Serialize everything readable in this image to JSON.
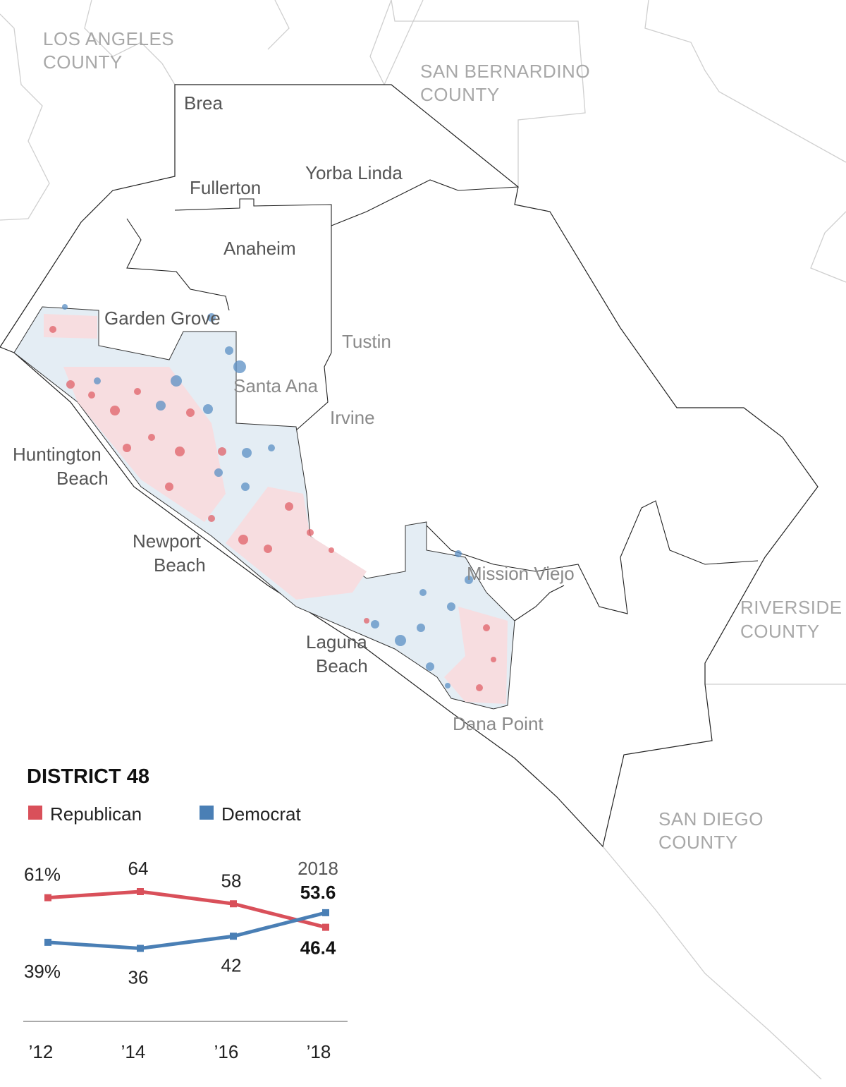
{
  "map": {
    "counties": [
      {
        "lines": [
          "LOS ANGELES",
          "COUNTY"
        ]
      },
      {
        "lines": [
          "SAN BERNARDINO",
          "COUNTY"
        ]
      },
      {
        "lines": [
          "RIVERSIDE",
          "COUNTY"
        ]
      },
      {
        "lines": [
          "SAN DIEGO",
          "COUNTY"
        ]
      }
    ],
    "cities": [
      {
        "lines": [
          "Brea"
        ]
      },
      {
        "lines": [
          "Fullerton"
        ]
      },
      {
        "lines": [
          "Yorba Linda"
        ]
      },
      {
        "lines": [
          "Anaheim"
        ]
      },
      {
        "lines": [
          "Garden Grove"
        ]
      },
      {
        "lines": [
          "Tustin"
        ]
      },
      {
        "lines": [
          "Santa Ana"
        ]
      },
      {
        "lines": [
          "Irvine"
        ]
      },
      {
        "lines": [
          "Huntington",
          "Beach"
        ]
      },
      {
        "lines": [
          "Newport",
          "Beach"
        ]
      },
      {
        "lines": [
          "Mission Viejo"
        ]
      },
      {
        "lines": [
          "Laguna",
          "Beach"
        ]
      },
      {
        "lines": [
          "Dana Point"
        ]
      }
    ]
  },
  "chart_data": {
    "type": "line",
    "title": "DISTRICT 48",
    "annotation": "2018",
    "categories": [
      "’12",
      "’14",
      "’16",
      "’18"
    ],
    "series": [
      {
        "name": "Republican",
        "color": "#d9505a",
        "values": [
          61,
          64,
          58,
          46.4
        ],
        "value_labels": [
          "61%",
          "64",
          "58",
          "46.4"
        ]
      },
      {
        "name": "Democrat",
        "color": "#4a7fb5",
        "values": [
          39,
          36,
          42,
          53.6
        ],
        "value_labels": [
          "39%",
          "36",
          "42",
          "53.6"
        ]
      }
    ],
    "ylim": [
      0,
      80
    ]
  }
}
